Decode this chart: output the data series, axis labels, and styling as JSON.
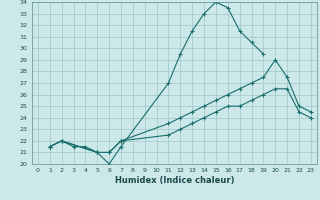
{
  "title": "",
  "xlabel": "Humidex (Indice chaleur)",
  "ylabel": "",
  "bg_color": "#cce8e8",
  "grid_color": "#a0c8c8",
  "line_color": "#1a6e6e",
  "xlim": [
    -0.5,
    23.5
  ],
  "ylim": [
    20,
    34
  ],
  "xticks": [
    0,
    1,
    2,
    3,
    4,
    5,
    6,
    7,
    8,
    9,
    10,
    11,
    12,
    13,
    14,
    15,
    16,
    17,
    18,
    19,
    20,
    21,
    22,
    23
  ],
  "yticks": [
    20,
    21,
    22,
    23,
    24,
    25,
    26,
    27,
    28,
    29,
    30,
    31,
    32,
    33,
    34
  ],
  "line1_x": [
    1,
    2,
    3,
    4,
    5,
    6,
    7,
    11,
    12,
    13,
    14,
    15,
    16,
    17,
    18,
    19
  ],
  "line1_y": [
    21.5,
    22.0,
    21.5,
    21.5,
    21.0,
    20.0,
    21.5,
    27.0,
    29.5,
    31.5,
    33.0,
    34.0,
    33.5,
    31.5,
    30.5,
    29.5
  ],
  "line2_x": [
    1,
    2,
    5,
    6,
    7,
    11,
    12,
    13,
    14,
    15,
    16,
    17,
    18,
    19,
    20,
    21,
    22,
    23
  ],
  "line2_y": [
    21.5,
    22.0,
    21.0,
    21.0,
    22.0,
    23.5,
    24.0,
    24.5,
    25.0,
    25.5,
    26.0,
    26.5,
    27.0,
    27.5,
    29.0,
    27.5,
    25.0,
    24.5
  ],
  "line3_x": [
    1,
    2,
    5,
    6,
    7,
    11,
    12,
    13,
    14,
    15,
    16,
    17,
    18,
    19,
    20,
    21,
    22,
    23
  ],
  "line3_y": [
    21.5,
    22.0,
    21.0,
    21.0,
    22.0,
    22.5,
    23.0,
    23.5,
    24.0,
    24.5,
    25.0,
    25.0,
    25.5,
    26.0,
    26.5,
    26.5,
    24.5,
    24.0
  ]
}
